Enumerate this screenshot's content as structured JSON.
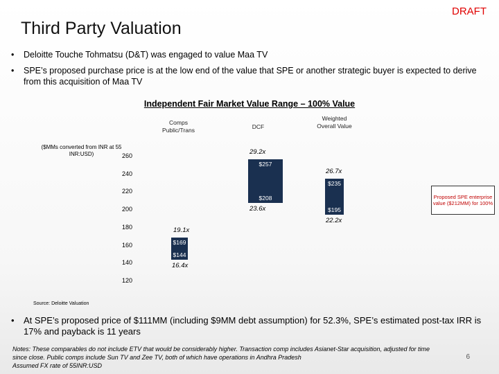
{
  "draft_label": "DRAFT",
  "title": "Third Party Valuation",
  "bullets": [
    "Deloitte Touche Tohmatsu (D&T) was engaged to value Maa TV",
    "SPE’s proposed purchase price is at the low end of the value that SPE or another strategic buyer is expected to derive from this acquisition of Maa TV"
  ],
  "bullet_symbol": "•",
  "chart_data": {
    "type": "bar",
    "subtype": "floating-range",
    "title": "Independent Fair Market Value Range – 100% Value",
    "unit_label": "($MMs converted from INR at 55 INR:USD)",
    "ylim": [
      120,
      260
    ],
    "yticks": [
      "260",
      "240",
      "220",
      "200",
      "180",
      "160",
      "140",
      "120"
    ],
    "categories": [
      "Comps Public/Trans",
      "DCF",
      "Weighted Overall Value"
    ],
    "series": [
      {
        "name": "Comps Public/Trans",
        "low": 144,
        "high": 169,
        "low_label": "$144",
        "high_label": "$169",
        "low_multiple": "16.4x",
        "high_multiple": "19.1x"
      },
      {
        "name": "DCF",
        "low": 208,
        "high": 257,
        "low_label": "$208",
        "high_label": "$257",
        "low_multiple": "23.6x",
        "high_multiple": "29.2x"
      },
      {
        "name": "Weighted Overall Value",
        "low": 195,
        "high": 235,
        "low_label": "$195",
        "high_label": "$235",
        "low_multiple": "22.2x",
        "high_multiple": "26.7x"
      }
    ],
    "annotation": "Proposed SPE enterprise value ($212MM) for 100%",
    "source": "Source: Deloitte Valuation"
  },
  "bottom_bullet": "At SPE’s proposed price of $111MM (including $9MM debt assumption) for 52.3%, SPE’s estimated post-tax IRR is 17% and payback is 11 years",
  "notes": [
    "Notes: These comparables do not include ETV that would be considerably higher. Transaction comp includes Asianet-Star acquisition, adjusted for time",
    "since close. Public comps include Sun TV and Zee TV, both of which have operations in Andhra Pradesh",
    "Assumed FX rate of 55INR:USD"
  ],
  "page_number": "6",
  "colors": {
    "bar": "#1a3050",
    "draft": "#e00000",
    "annotation": "#c00000"
  }
}
